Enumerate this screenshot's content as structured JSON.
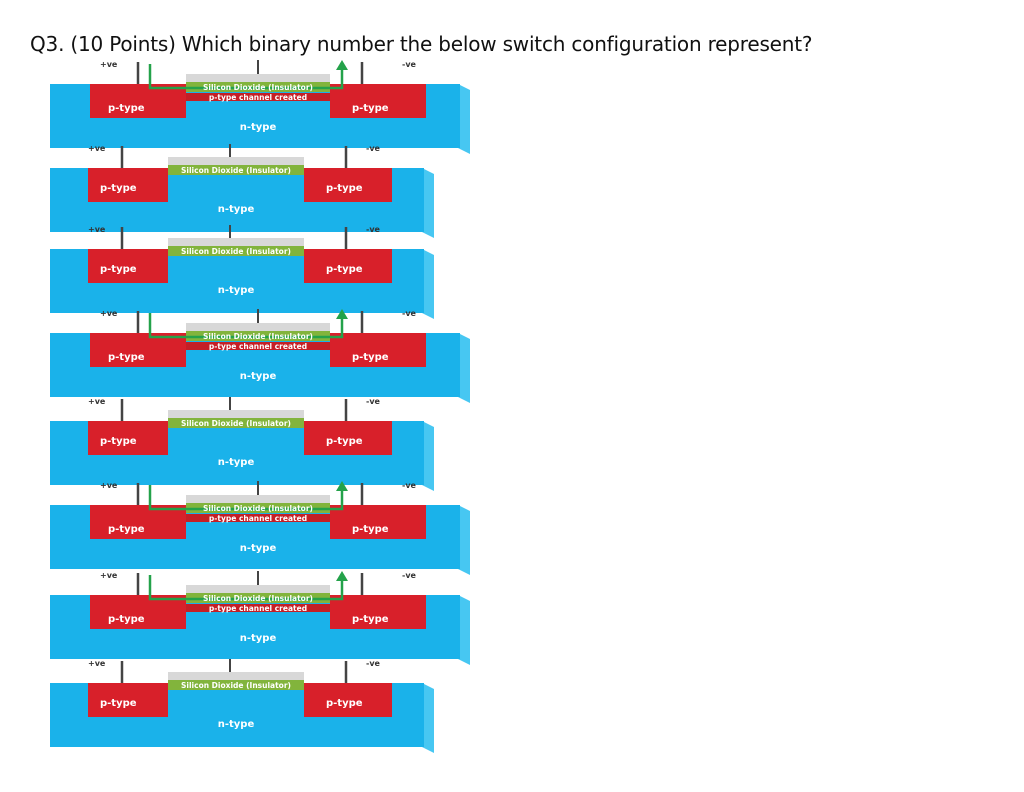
{
  "question": {
    "text": "Q3. (10 Points) Which binary number the below switch configuration represent?"
  },
  "labels": {
    "positive_terminal": "+ve",
    "negative_terminal": "-ve",
    "insulator": "Silicon Dioxide (Insulator)",
    "channel": "p-type channel created",
    "source_region": "p-type",
    "drain_region": "p-type",
    "substrate": "n-type"
  },
  "colors": {
    "substrate": "#1ab2ea",
    "substrate_side": "#47c7f2",
    "p_region": "#d8202a",
    "insulator": "#82b43c",
    "channel": "#c41f26",
    "gate_plate": "#d8d8d8",
    "current_arrow": "#24a24a"
  },
  "transistors": [
    {
      "state": "on"
    },
    {
      "state": "off"
    },
    {
      "state": "off"
    },
    {
      "state": "on"
    },
    {
      "state": "off"
    },
    {
      "state": "on"
    },
    {
      "state": "on"
    },
    {
      "state": "off"
    }
  ]
}
